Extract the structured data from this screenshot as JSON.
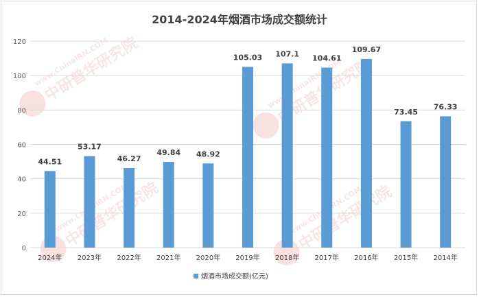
{
  "chart_data": {
    "type": "bar",
    "title": "2014-2024年烟酒市场成交额统计",
    "categories": [
      "2024年",
      "2023年",
      "2022年",
      "2021年",
      "2020年",
      "2019年",
      "2018年",
      "2017年",
      "2016年",
      "2015年",
      "2014年"
    ],
    "series": [
      {
        "name": "烟酒市场成交额(亿元)",
        "values": [
          44.51,
          53.17,
          46.27,
          49.84,
          48.92,
          105.03,
          107.1,
          104.61,
          109.67,
          73.45,
          76.33
        ],
        "labels": [
          "44.51",
          "53.17",
          "46.27",
          "49.84",
          "48.92",
          "105.03",
          "107.1",
          "104.61",
          "109.67",
          "73.45",
          "76.33"
        ],
        "color": "#5b9bd5"
      }
    ],
    "ylim": [
      0,
      120
    ],
    "yticks": [
      "0",
      "20",
      "40",
      "60",
      "80",
      "100",
      "120"
    ],
    "grid": true,
    "legend_position": "bottom",
    "xlabel": "",
    "ylabel": ""
  },
  "watermark": {
    "url": "www.ChinaIRN.COM",
    "brand": "中研普华研究院",
    "logo": "CIRN",
    "color": "#e05a5a"
  }
}
